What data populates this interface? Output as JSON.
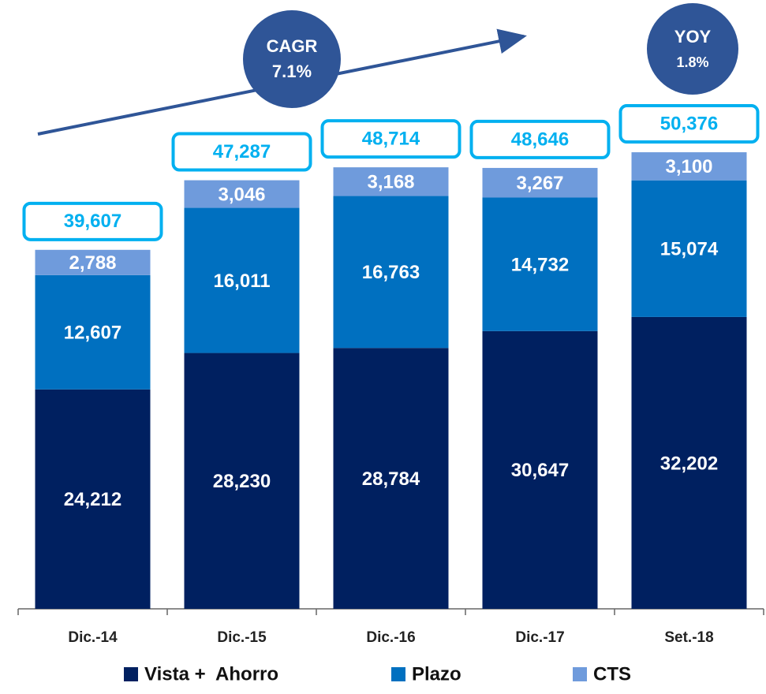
{
  "chart_data": {
    "type": "bar",
    "stacked": true,
    "categories": [
      "Dic.-14",
      "Dic.-15",
      "Dic.-16",
      "Dic.-17",
      "Set.-18"
    ],
    "series": [
      {
        "name": "Vista +  Ahorro",
        "color": "#002060",
        "values": [
          24212,
          28230,
          28784,
          30647,
          32202
        ],
        "value_labels": [
          "24,212",
          "28,230",
          "28,784",
          "30,647",
          "32,202"
        ]
      },
      {
        "name": "Plazo",
        "color": "#0070c0",
        "values": [
          12607,
          16011,
          16763,
          14732,
          15074
        ],
        "value_labels": [
          "12,607",
          "16,011",
          "16,763",
          "14,732",
          "15,074"
        ]
      },
      {
        "name": "CTS",
        "color": "#6f9bdc",
        "values": [
          2788,
          3046,
          3168,
          3267,
          3100
        ],
        "value_labels": [
          "2,788",
          "3,046",
          "3,168",
          "3,267",
          "3,100"
        ]
      }
    ],
    "totals": [
      39607,
      47287,
      48714,
      48646,
      50376
    ],
    "total_labels": [
      "39,607",
      "47,287",
      "48,714",
      "48,646",
      "50,376"
    ],
    "total_color": "#00b0f0",
    "ylim": [
      0,
      67000
    ],
    "annotations": [
      {
        "title": "CAGR",
        "text": "7.1%"
      },
      {
        "title": "YOY",
        "text": "1.8%"
      }
    ],
    "legend": "bottom"
  }
}
